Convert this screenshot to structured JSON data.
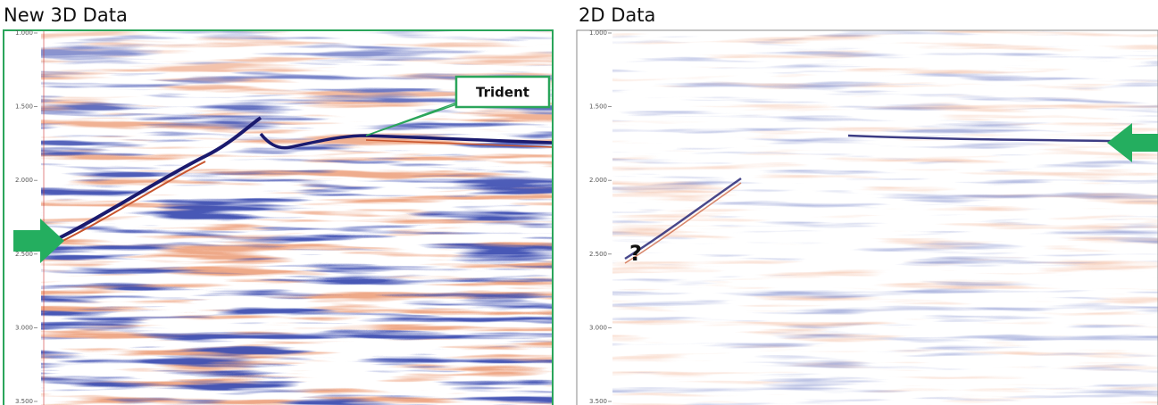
{
  "left_panel": {
    "title": "New 3D Data",
    "ticks": [
      "1.000",
      "1.500",
      "2.000",
      "2.500",
      "3.000",
      "3.500"
    ],
    "callout": "Trident"
  },
  "right_panel": {
    "title": "2D Data",
    "ticks": [
      "1.000",
      "1.500",
      "2.000",
      "2.500",
      "3.000",
      "3.500"
    ],
    "annotation": "?"
  }
}
